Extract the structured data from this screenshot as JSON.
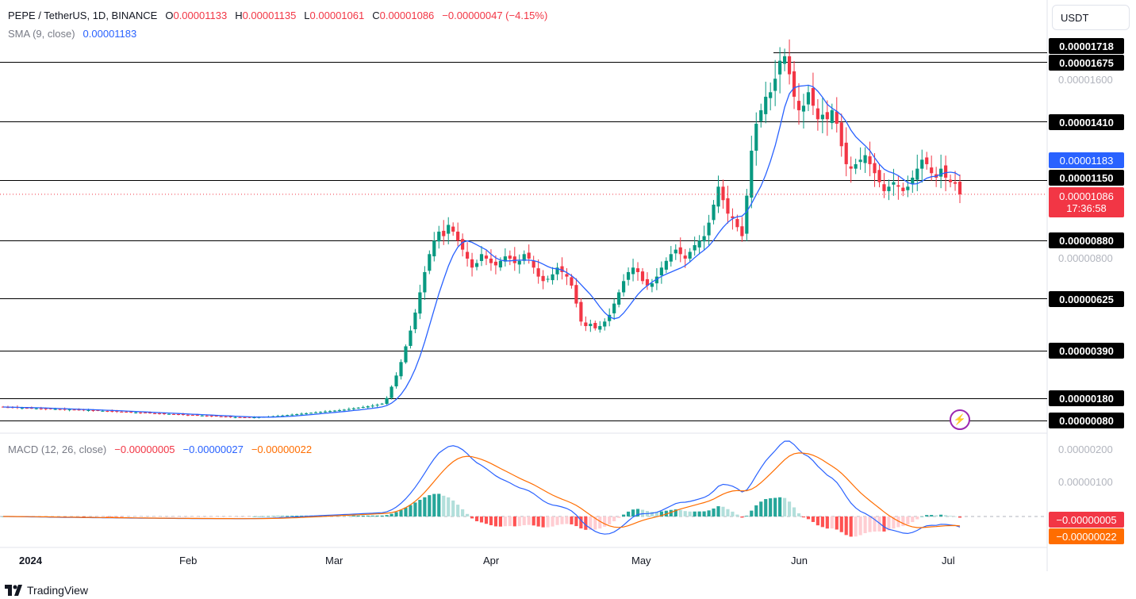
{
  "symbol": {
    "name": "PEPE / TetherUS, 1D, BINANCE",
    "o_label": "O",
    "o_value": "0.00001133",
    "h_label": "H",
    "h_value": "0.00001135",
    "l_label": "L",
    "l_value": "0.00001061",
    "c_label": "C",
    "c_value": "0.00001086",
    "change": "−0.00000047 (−4.15%)"
  },
  "sma": {
    "label": "SMA (9, close)",
    "value": "0.00001183"
  },
  "currency_button": "USDT",
  "levels": [
    "0.00001718",
    "0.00001675",
    "0.00001410",
    "0.00001150",
    "0.00000880",
    "0.00000625",
    "0.00000390",
    "0.00000180",
    "0.00000080"
  ],
  "price_axis": [
    "0.00001600",
    "0.00000800"
  ],
  "current": {
    "sma_tag": "0.00001183",
    "price_tag": "0.00001086",
    "countdown": "17:36:58"
  },
  "macd": {
    "label": "MACD (12, 26, close)",
    "hist": "−0.00000005",
    "macd": "−0.00000027",
    "signal": "−0.00000022",
    "axis": [
      "0.00000200",
      "0.00000100"
    ],
    "tag_red": "−0.00000005",
    "tag_orange": "−0.00000022"
  },
  "time_axis": [
    "2024",
    "Feb",
    "Mar",
    "Apr",
    "May",
    "Jun",
    "Jul"
  ],
  "branding": "TradingView",
  "colors": {
    "up": "#089981",
    "down": "#f23645",
    "sma": "#2962ff",
    "signal": "#ff6d00",
    "level_line": "#000000"
  },
  "chart_data": {
    "type": "candlestick",
    "closes_shape": [
      1.4e-06,
      1.39e-06,
      1.38e-06,
      1.37e-06,
      1.36e-06,
      1.35e-06,
      1.35e-06,
      1.34e-06,
      1.33e-06,
      1.32e-06,
      1.31e-06,
      1.31e-06,
      1.3e-06,
      1.29e-06,
      1.29e-06,
      1.28e-06,
      1.27e-06,
      1.26e-06,
      1.26e-06,
      1.25e-06,
      1.24e-06,
      1.23e-06,
      1.22e-06,
      1.21e-06,
      1.2e-06,
      1.19e-06,
      1.18e-06,
      1.17e-06,
      1.16e-06,
      1.15e-06,
      1.14e-06,
      1.13e-06,
      1.12e-06,
      1.11e-06,
      1.1e-06,
      1.09e-06,
      1.08e-06,
      1.07e-06,
      1.06e-06,
      1.05e-06,
      1.04e-06,
      1.03e-06,
      1.02e-06,
      1.01e-06,
      1e-06,
      9.9e-07,
      9.8e-07,
      9.7e-07,
      9.6e-07,
      9.5e-07,
      9.4e-07,
      9.4e-07,
      9.4e-07,
      9.4e-07,
      9.5e-07,
      9.6e-07,
      9.7e-07,
      9.9e-07,
      1e-06,
      1.02e-06,
      1.04e-06,
      1.06e-06,
      1.08e-06,
      1.1e-06,
      1.12e-06,
      1.14e-06,
      1.16e-06,
      1.18e-06,
      1.2e-06,
      1.22e-06,
      1.24e-06,
      1.26e-06,
      1.28e-06,
      1.31e-06,
      1.34e-06,
      1.37e-06,
      1.4e-06,
      1.43e-06,
      1.46e-06,
      1.5e-06,
      1.55e-06,
      1.8e-06,
      2.3e-06,
      2.8e-06,
      3.4e-06,
      4.1e-06,
      4.8e-06,
      5.6e-06,
      6.5e-06,
      7.4e-06,
      8.2e-06,
      8.8e-06,
      9.2e-06,
      9e-06,
      9.5e-06,
      9.2e-06,
      8.8e-06,
      8.4e-06,
      8e-06,
      7.6e-06,
      7.8e-06,
      8.2e-06,
      8e-06,
      7.8e-06,
      7.7e-06,
      7.9e-06,
      8.1e-06,
      8e-06,
      7.8e-06,
      7.9e-06,
      8.2e-06,
      8e-06,
      7.6e-06,
      7.2e-06,
      7e-06,
      7.1e-06,
      7.3e-06,
      7.6e-06,
      7.4e-06,
      7.2e-06,
      6.8e-06,
      6e-06,
      5.2e-06,
      5e-06,
      5.1e-06,
      4.9e-06,
      5e-06,
      5.2e-06,
      5.5e-06,
      6e-06,
      6.5e-06,
      7e-06,
      7.4e-06,
      7.6e-06,
      7.4e-06,
      7e-06,
      6.8e-06,
      6.9e-06,
      7.2e-06,
      7.6e-06,
      7.9e-06,
      8.2e-06,
      8.4e-06,
      8.2e-06,
      8e-06,
      8.3e-06,
      8.6e-06,
      8.8e-06,
      9e-06,
      9.6e-06,
      1.04e-05,
      1.12e-05,
      1.06e-05,
      1e-05,
      9.8e-06,
      9.4e-06,
      9e-06,
      1.08e-05,
      1.28e-05,
      1.4e-05,
      1.46e-05,
      1.52e-05,
      1.54e-05,
      1.6e-05,
      1.68e-05,
      1.7e-05,
      1.62e-05,
      1.52e-05,
      1.46e-05,
      1.48e-05,
      1.54e-05,
      1.48e-05,
      1.42e-05,
      1.44e-05,
      1.42e-05,
      1.46e-05,
      1.4e-05,
      1.3e-05,
      1.22e-05,
      1.2e-05,
      1.22e-05,
      1.24e-05,
      1.26e-05,
      1.22e-05,
      1.18e-05,
      1.14e-05,
      1.1e-05,
      1.12e-05,
      1.14e-05,
      1.12e-05,
      1.1e-05,
      1.12e-05,
      1.16e-05,
      1.2e-05,
      1.24e-05,
      1.22e-05,
      1.18e-05,
      1.16e-05,
      1.2e-05,
      1.16e-05,
      1.14e-05,
      1.133e-05,
      1.086e-05
    ]
  }
}
